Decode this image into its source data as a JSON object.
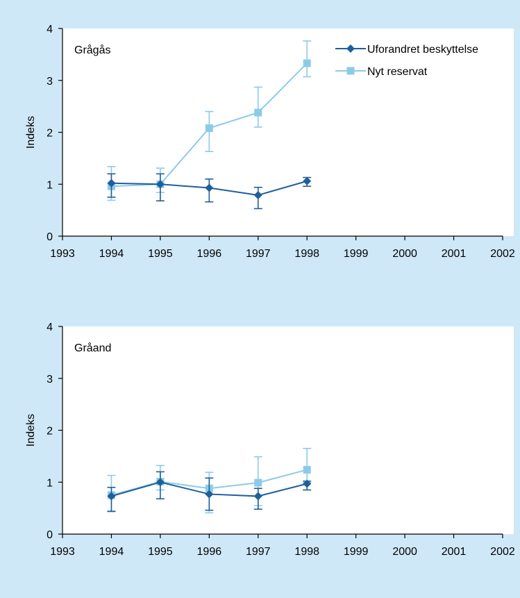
{
  "chart_data": [
    {
      "type": "line",
      "title": "Grågås",
      "xlabel": "",
      "ylabel": "Indeks",
      "xlim": [
        1993,
        2002
      ],
      "ylim": [
        0,
        4
      ],
      "x_ticks": [
        "1993",
        "1994",
        "1995",
        "1996",
        "1997",
        "1998",
        "1999",
        "2000",
        "2001",
        "2002"
      ],
      "y_ticks": [
        "0",
        "1",
        "2",
        "3",
        "4"
      ],
      "grid": false,
      "legend": "top-right",
      "series": [
        {
          "name": "Uforandret beskyttelse",
          "marker": "diamond",
          "color": "#1f5f9a",
          "x": [
            1994,
            1995,
            1996,
            1997,
            1998
          ],
          "values": [
            1.02,
            1.0,
            0.93,
            0.79,
            1.06
          ],
          "error_low": [
            0.75,
            0.68,
            0.66,
            0.53,
            0.96
          ],
          "error_high": [
            1.2,
            1.2,
            1.1,
            0.94,
            1.13
          ]
        },
        {
          "name": "Nyt reservat",
          "marker": "square",
          "color": "#8ccbe8",
          "x": [
            1994,
            1995,
            1996,
            1997,
            1998
          ],
          "values": [
            0.96,
            1.0,
            2.08,
            2.38,
            3.33
          ],
          "error_low": [
            0.69,
            0.84,
            1.63,
            2.1,
            3.07
          ],
          "error_high": [
            1.34,
            1.31,
            2.4,
            2.87,
            3.76
          ]
        }
      ]
    },
    {
      "type": "line",
      "title": "Gråand",
      "xlabel": "",
      "ylabel": "Indeks",
      "xlim": [
        1993,
        2002
      ],
      "ylim": [
        0,
        4
      ],
      "x_ticks": [
        "1993",
        "1994",
        "1995",
        "1996",
        "1997",
        "1998",
        "1999",
        "2000",
        "2001",
        "2002"
      ],
      "y_ticks": [
        "0",
        "1",
        "2",
        "3",
        "4"
      ],
      "grid": false,
      "legend": "none",
      "series": [
        {
          "name": "Uforandret beskyttelse",
          "marker": "diamond",
          "color": "#1f5f9a",
          "x": [
            1994,
            1995,
            1996,
            1997,
            1998
          ],
          "values": [
            0.73,
            1.0,
            0.77,
            0.73,
            0.97
          ],
          "error_low": [
            0.44,
            0.68,
            0.46,
            0.48,
            0.85
          ],
          "error_high": [
            0.9,
            1.2,
            1.08,
            0.88,
            1.02
          ]
        },
        {
          "name": "Nyt reservat",
          "marker": "square",
          "color": "#8ccbe8",
          "x": [
            1994,
            1995,
            1996,
            1997,
            1998
          ],
          "values": [
            0.75,
            1.01,
            0.88,
            0.99,
            1.24
          ],
          "error_low": [
            0.43,
            0.85,
            0.41,
            0.55,
            0.99
          ],
          "error_high": [
            1.13,
            1.32,
            1.19,
            1.49,
            1.65
          ]
        }
      ]
    }
  ]
}
